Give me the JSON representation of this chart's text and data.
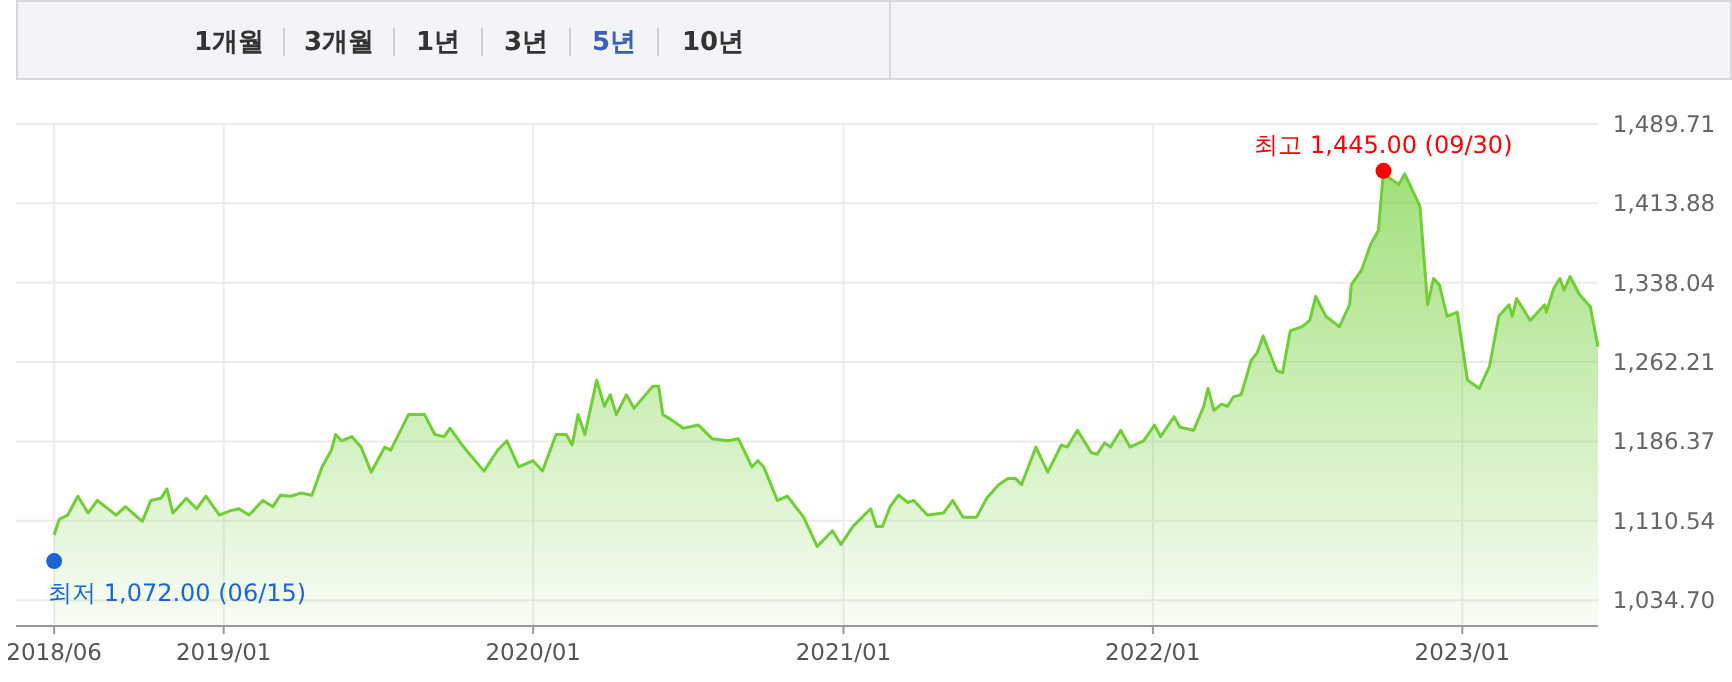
{
  "chart_data": {
    "type": "area",
    "x": [
      "2018-06-15",
      "2018-06-21",
      "2018-07-01",
      "2018-07-13",
      "2018-07-25",
      "2018-08-05",
      "2018-08-27",
      "2018-09-07",
      "2018-09-27",
      "2018-10-07",
      "2018-10-19",
      "2018-10-26",
      "2018-11-02",
      "2018-11-18",
      "2018-11-30",
      "2018-12-11",
      "2018-12-27",
      "2019-01-08",
      "2019-01-19",
      "2019-01-31",
      "2019-02-16",
      "2019-02-28",
      "2019-03-09",
      "2019-03-21",
      "2019-04-02",
      "2019-04-15",
      "2019-04-27",
      "2019-05-08",
      "2019-05-13",
      "2019-05-20",
      "2019-06-01",
      "2019-06-12",
      "2019-06-24",
      "2019-07-10",
      "2019-07-17",
      "2019-08-07",
      "2019-08-26",
      "2019-09-07",
      "2019-09-18",
      "2019-09-25",
      "2019-10-11",
      "2019-11-04",
      "2019-11-20",
      "2019-12-01",
      "2019-12-15",
      "2020-01-01",
      "2020-01-12",
      "2020-01-28",
      "2020-02-09",
      "2020-02-16",
      "2020-02-23",
      "2020-03-02",
      "2020-03-16",
      "2020-03-25",
      "2020-04-01",
      "2020-04-08",
      "2020-04-20",
      "2020-04-29",
      "2020-05-21",
      "2020-05-28",
      "2020-06-02",
      "2020-06-14",
      "2020-06-26",
      "2020-07-14",
      "2020-07-30",
      "2020-08-18",
      "2020-08-30",
      "2020-09-15",
      "2020-09-22",
      "2020-09-29",
      "2020-10-15",
      "2020-10-27",
      "2020-11-15",
      "2020-12-01",
      "2020-12-19",
      "2020-12-29",
      "2021-01-12",
      "2021-02-02",
      "2021-02-09",
      "2021-02-16",
      "2021-02-25",
      "2021-03-07",
      "2021-03-18",
      "2021-03-25",
      "2021-04-10",
      "2021-04-29",
      "2021-05-10",
      "2021-05-22",
      "2021-06-07",
      "2021-06-19",
      "2021-07-03",
      "2021-07-14",
      "2021-07-23",
      "2021-07-30",
      "2021-08-16",
      "2021-08-30",
      "2021-09-15",
      "2021-09-22",
      "2021-10-04",
      "2021-10-20",
      "2021-10-27",
      "2021-11-05",
      "2021-11-12",
      "2021-11-24",
      "2021-12-05",
      "2021-12-21",
      "2022-01-03",
      "2022-01-10",
      "2022-01-26",
      "2022-02-02",
      "2022-02-18",
      "2022-03-02",
      "2022-03-07",
      "2022-03-14",
      "2022-03-23",
      "2022-03-30",
      "2022-04-06",
      "2022-04-15",
      "2022-04-27",
      "2022-05-04",
      "2022-05-11",
      "2022-05-27",
      "2022-06-03",
      "2022-06-12",
      "2022-06-26",
      "2022-07-05",
      "2022-07-12",
      "2022-07-24",
      "2022-08-09",
      "2022-08-21",
      "2022-08-23",
      "2022-09-04",
      "2022-09-15",
      "2022-09-24",
      "2022-09-30",
      "2022-10-07",
      "2022-10-18",
      "2022-10-25",
      "2022-11-01",
      "2022-11-12",
      "2022-11-21",
      "2022-11-28",
      "2022-12-05",
      "2022-12-14",
      "2022-12-26",
      "2023-01-07",
      "2023-01-14",
      "2023-01-21",
      "2023-02-02",
      "2023-02-13",
      "2023-02-25",
      "2023-03-01",
      "2023-03-06",
      "2023-03-22",
      "2023-04-08",
      "2023-04-10",
      "2023-04-19",
      "2023-04-26",
      "2023-05-01",
      "2023-05-08",
      "2023-05-19",
      "2023-06-01",
      "2023-06-10"
    ],
    "series": [
      {
        "color": "#6fcf34",
        "values": [
          1097,
          1112,
          1116,
          1134,
          1118,
          1130,
          1116,
          1124,
          1110,
          1130,
          1132,
          1141,
          1118,
          1132,
          1122,
          1134,
          1116,
          1120,
          1122,
          1116,
          1130,
          1124,
          1135,
          1134,
          1137,
          1135,
          1162,
          1178,
          1193,
          1187,
          1191,
          1181,
          1157,
          1181,
          1178,
          1212,
          1212,
          1193,
          1191,
          1199,
          1181,
          1158,
          1178,
          1187,
          1162,
          1168,
          1158,
          1193,
          1193,
          1183,
          1212,
          1193,
          1245,
          1220,
          1231,
          1212,
          1231,
          1218,
          1239,
          1239,
          1212,
          1206,
          1199,
          1202,
          1189,
          1187,
          1189,
          1162,
          1168,
          1162,
          1130,
          1134,
          1114,
          1086,
          1101,
          1088,
          1105,
          1122,
          1105,
          1105,
          1124,
          1135,
          1128,
          1130,
          1116,
          1118,
          1130,
          1114,
          1114,
          1132,
          1145,
          1151,
          1151,
          1145,
          1181,
          1157,
          1183,
          1181,
          1197,
          1176,
          1174,
          1185,
          1181,
          1197,
          1181,
          1187,
          1202,
          1191,
          1210,
          1200,
          1197,
          1220,
          1237,
          1216,
          1222,
          1220,
          1229,
          1231,
          1264,
          1271,
          1287,
          1254,
          1252,
          1292,
          1296,
          1302,
          1325,
          1306,
          1296,
          1317,
          1336,
          1350,
          1375,
          1388,
          1445,
          1438,
          1432,
          1442,
          1430,
          1411,
          1317,
          1342,
          1336,
          1306,
          1310,
          1245,
          1241,
          1237,
          1258,
          1306,
          1317,
          1306,
          1323,
          1302,
          1317,
          1310,
          1333,
          1342,
          1331,
          1344,
          1327,
          1315,
          1277
        ]
      }
    ],
    "xlim": [
      "2018-05-01",
      "2023-06-10"
    ],
    "xticks": [
      {
        "value": "2018-06-15",
        "label": "2018/06"
      },
      {
        "value": "2019-01-01",
        "label": "2019/01"
      },
      {
        "value": "2020-01-01",
        "label": "2020/01"
      },
      {
        "value": "2021-01-01",
        "label": "2021/01"
      },
      {
        "value": "2022-01-01",
        "label": "2022/01"
      },
      {
        "value": "2023-01-01",
        "label": "2023/01"
      }
    ],
    "ylim": [
      1010,
      1489.71
    ],
    "yticks": [
      {
        "value": 1034.7,
        "label": "1,034.70"
      },
      {
        "value": 1110.54,
        "label": "1,110.54"
      },
      {
        "value": 1186.37,
        "label": "1,186.37"
      },
      {
        "value": 1262.21,
        "label": "1,262.21"
      },
      {
        "value": 1338.04,
        "label": "1,338.04"
      },
      {
        "value": 1413.88,
        "label": "1,413.88"
      },
      {
        "value": 1489.71,
        "label": "1,489.71"
      }
    ],
    "grid": true,
    "annotations": [
      "1개월",
      "3개월",
      "1년",
      "3년",
      "5년",
      "10년",
      {
        "text": "최고 1,445.00 (09/30)",
        "x": "2022-09-30",
        "y": 1445
      },
      {
        "text": "최저 1,072.00 (06/15)",
        "x": "2018-06-15",
        "y": 1072
      }
    ]
  }
}
